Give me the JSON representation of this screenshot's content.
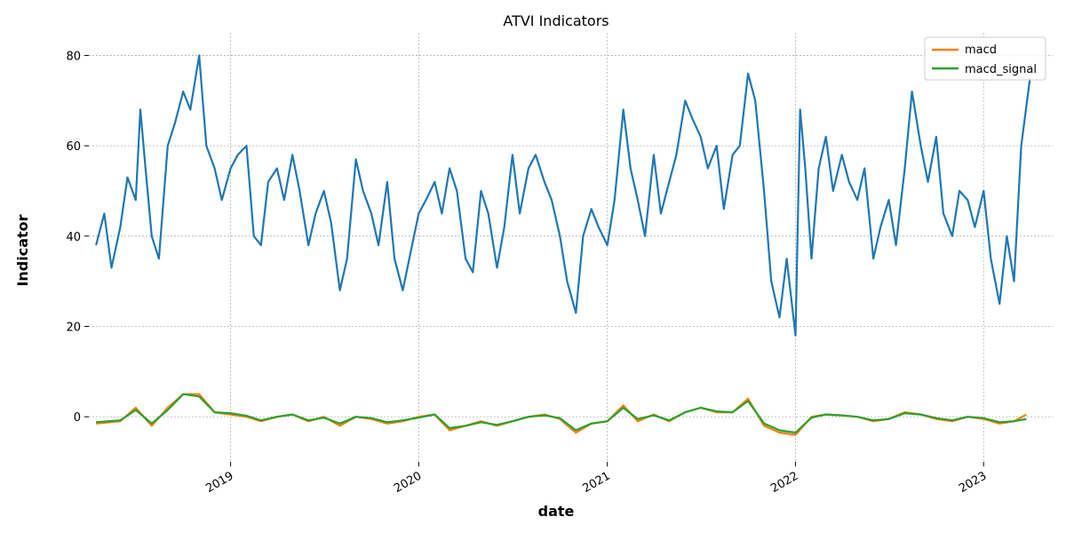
{
  "chart_data": {
    "type": "line",
    "title": "ATVI Indicators",
    "xlabel": "date",
    "ylabel": "Indicator",
    "xlim": [
      "2018-04-01",
      "2023-05-15"
    ],
    "ylim": [
      -10,
      85
    ],
    "yticks": [
      0,
      20,
      40,
      60,
      80
    ],
    "xticks": [
      {
        "date": "2019-01-01",
        "label": "2019"
      },
      {
        "date": "2020-01-01",
        "label": "2020"
      },
      {
        "date": "2021-01-01",
        "label": "2021"
      },
      {
        "date": "2022-01-01",
        "label": "2022"
      },
      {
        "date": "2023-01-01",
        "label": "2023"
      }
    ],
    "grid": true,
    "legend_position": "top-right",
    "legend": [
      "macd",
      "macd_signal"
    ],
    "series": [
      {
        "color": "#1f77b4",
        "points": [
          [
            "2018-04-15",
            38
          ],
          [
            "2018-05-01",
            45
          ],
          [
            "2018-05-15",
            33
          ],
          [
            "2018-06-01",
            42
          ],
          [
            "2018-06-15",
            53
          ],
          [
            "2018-07-01",
            48
          ],
          [
            "2018-07-10",
            68
          ],
          [
            "2018-07-20",
            55
          ],
          [
            "2018-08-01",
            40
          ],
          [
            "2018-08-15",
            35
          ],
          [
            "2018-09-01",
            60
          ],
          [
            "2018-09-15",
            65
          ],
          [
            "2018-10-01",
            72
          ],
          [
            "2018-10-15",
            68
          ],
          [
            "2018-11-01",
            80
          ],
          [
            "2018-11-15",
            60
          ],
          [
            "2018-12-01",
            55
          ],
          [
            "2018-12-15",
            48
          ],
          [
            "2019-01-01",
            55
          ],
          [
            "2019-01-15",
            58
          ],
          [
            "2019-02-01",
            60
          ],
          [
            "2019-02-15",
            40
          ],
          [
            "2019-03-01",
            38
          ],
          [
            "2019-03-15",
            52
          ],
          [
            "2019-04-01",
            55
          ],
          [
            "2019-04-15",
            48
          ],
          [
            "2019-05-01",
            58
          ],
          [
            "2019-05-15",
            50
          ],
          [
            "2019-06-01",
            38
          ],
          [
            "2019-06-15",
            45
          ],
          [
            "2019-07-01",
            50
          ],
          [
            "2019-07-15",
            43
          ],
          [
            "2019-08-01",
            28
          ],
          [
            "2019-08-15",
            35
          ],
          [
            "2019-09-01",
            57
          ],
          [
            "2019-09-15",
            50
          ],
          [
            "2019-10-01",
            45
          ],
          [
            "2019-10-15",
            38
          ],
          [
            "2019-11-01",
            52
          ],
          [
            "2019-11-15",
            35
          ],
          [
            "2019-12-01",
            28
          ],
          [
            "2020-01-01",
            45
          ],
          [
            "2020-01-15",
            48
          ],
          [
            "2020-02-01",
            52
          ],
          [
            "2020-02-15",
            45
          ],
          [
            "2020-03-01",
            55
          ],
          [
            "2020-03-15",
            50
          ],
          [
            "2020-04-01",
            35
          ],
          [
            "2020-04-15",
            32
          ],
          [
            "2020-05-01",
            50
          ],
          [
            "2020-05-15",
            45
          ],
          [
            "2020-06-01",
            33
          ],
          [
            "2020-06-15",
            42
          ],
          [
            "2020-07-01",
            58
          ],
          [
            "2020-07-15",
            45
          ],
          [
            "2020-08-01",
            55
          ],
          [
            "2020-08-15",
            58
          ],
          [
            "2020-09-01",
            52
          ],
          [
            "2020-09-15",
            48
          ],
          [
            "2020-10-01",
            40
          ],
          [
            "2020-10-15",
            30
          ],
          [
            "2020-11-01",
            23
          ],
          [
            "2020-11-15",
            40
          ],
          [
            "2020-12-01",
            46
          ],
          [
            "2020-12-15",
            42
          ],
          [
            "2021-01-01",
            38
          ],
          [
            "2021-01-15",
            48
          ],
          [
            "2021-02-01",
            68
          ],
          [
            "2021-02-15",
            55
          ],
          [
            "2021-03-01",
            48
          ],
          [
            "2021-03-15",
            40
          ],
          [
            "2021-04-01",
            58
          ],
          [
            "2021-04-15",
            45
          ],
          [
            "2021-05-01",
            52
          ],
          [
            "2021-05-15",
            58
          ],
          [
            "2021-06-01",
            70
          ],
          [
            "2021-06-15",
            66
          ],
          [
            "2021-07-01",
            62
          ],
          [
            "2021-07-15",
            55
          ],
          [
            "2021-08-01",
            60
          ],
          [
            "2021-08-15",
            46
          ],
          [
            "2021-09-01",
            58
          ],
          [
            "2021-09-15",
            60
          ],
          [
            "2021-10-01",
            76
          ],
          [
            "2021-10-15",
            70
          ],
          [
            "2021-11-01",
            50
          ],
          [
            "2021-11-15",
            30
          ],
          [
            "2021-12-01",
            22
          ],
          [
            "2021-12-15",
            35
          ],
          [
            "2022-01-01",
            18
          ],
          [
            "2022-01-10",
            68
          ],
          [
            "2022-01-20",
            55
          ],
          [
            "2022-02-01",
            35
          ],
          [
            "2022-02-15",
            55
          ],
          [
            "2022-03-01",
            62
          ],
          [
            "2022-03-15",
            50
          ],
          [
            "2022-04-01",
            58
          ],
          [
            "2022-04-15",
            52
          ],
          [
            "2022-05-01",
            48
          ],
          [
            "2022-05-15",
            55
          ],
          [
            "2022-06-01",
            35
          ],
          [
            "2022-06-15",
            42
          ],
          [
            "2022-07-01",
            48
          ],
          [
            "2022-07-15",
            38
          ],
          [
            "2022-08-01",
            55
          ],
          [
            "2022-08-15",
            72
          ],
          [
            "2022-09-01",
            60
          ],
          [
            "2022-09-15",
            52
          ],
          [
            "2022-10-01",
            62
          ],
          [
            "2022-10-15",
            45
          ],
          [
            "2022-11-01",
            40
          ],
          [
            "2022-11-15",
            50
          ],
          [
            "2022-12-01",
            48
          ],
          [
            "2022-12-15",
            42
          ],
          [
            "2023-01-01",
            50
          ],
          [
            "2023-01-15",
            35
          ],
          [
            "2023-02-01",
            25
          ],
          [
            "2023-02-15",
            40
          ],
          [
            "2023-03-01",
            30
          ],
          [
            "2023-03-15",
            60
          ],
          [
            "2023-04-01",
            75
          ]
        ]
      },
      {
        "name": "macd",
        "color": "#ff7f0e",
        "points": [
          [
            "2018-04-15",
            -1.5
          ],
          [
            "2018-06-01",
            -1
          ],
          [
            "2018-07-01",
            2
          ],
          [
            "2018-08-01",
            -2
          ],
          [
            "2018-09-01",
            2
          ],
          [
            "2018-10-01",
            5
          ],
          [
            "2018-11-01",
            5
          ],
          [
            "2018-12-01",
            1
          ],
          [
            "2019-01-01",
            0.5
          ],
          [
            "2019-02-01",
            0
          ],
          [
            "2019-03-01",
            -1
          ],
          [
            "2019-04-01",
            0
          ],
          [
            "2019-05-01",
            0.5
          ],
          [
            "2019-06-01",
            -1
          ],
          [
            "2019-07-01",
            0
          ],
          [
            "2019-08-01",
            -2
          ],
          [
            "2019-09-01",
            0
          ],
          [
            "2019-10-01",
            -0.5
          ],
          [
            "2019-11-01",
            -1.5
          ],
          [
            "2019-12-01",
            -1
          ],
          [
            "2020-01-01",
            0
          ],
          [
            "2020-02-01",
            0.5
          ],
          [
            "2020-03-01",
            -3
          ],
          [
            "2020-04-01",
            -2
          ],
          [
            "2020-05-01",
            -1
          ],
          [
            "2020-06-01",
            -2
          ],
          [
            "2020-07-01",
            -1
          ],
          [
            "2020-08-01",
            0
          ],
          [
            "2020-09-01",
            0.5
          ],
          [
            "2020-10-01",
            -0.5
          ],
          [
            "2020-11-01",
            -3.5
          ],
          [
            "2020-12-01",
            -1.5
          ],
          [
            "2021-01-01",
            -1
          ],
          [
            "2021-02-01",
            2.5
          ],
          [
            "2021-03-01",
            -1
          ],
          [
            "2021-04-01",
            0.5
          ],
          [
            "2021-05-01",
            -1
          ],
          [
            "2021-06-01",
            1
          ],
          [
            "2021-07-01",
            2
          ],
          [
            "2021-08-01",
            1
          ],
          [
            "2021-09-01",
            1
          ],
          [
            "2021-10-01",
            4
          ],
          [
            "2021-11-01",
            -2
          ],
          [
            "2021-12-01",
            -3.5
          ],
          [
            "2022-01-01",
            -4
          ],
          [
            "2022-02-01",
            0
          ],
          [
            "2022-03-01",
            0.5
          ],
          [
            "2022-04-01",
            0.3
          ],
          [
            "2022-05-01",
            0
          ],
          [
            "2022-06-01",
            -1
          ],
          [
            "2022-07-01",
            -0.5
          ],
          [
            "2022-08-01",
            1
          ],
          [
            "2022-09-01",
            0.5
          ],
          [
            "2022-10-01",
            -0.5
          ],
          [
            "2022-11-01",
            -1
          ],
          [
            "2022-12-01",
            0
          ],
          [
            "2023-01-01",
            -0.5
          ],
          [
            "2023-02-01",
            -1.5
          ],
          [
            "2023-03-01",
            -1
          ],
          [
            "2023-03-25",
            0.5
          ]
        ]
      },
      {
        "name": "macd_signal",
        "color": "#2ca02c",
        "points": [
          [
            "2018-04-15",
            -1.2
          ],
          [
            "2018-06-01",
            -0.8
          ],
          [
            "2018-07-01",
            1.5
          ],
          [
            "2018-08-01",
            -1.5
          ],
          [
            "2018-09-01",
            1.5
          ],
          [
            "2018-10-01",
            5
          ],
          [
            "2018-11-01",
            4.5
          ],
          [
            "2018-12-01",
            1
          ],
          [
            "2019-01-01",
            0.8
          ],
          [
            "2019-02-01",
            0.2
          ],
          [
            "2019-03-01",
            -0.8
          ],
          [
            "2019-04-01",
            0
          ],
          [
            "2019-05-01",
            0.5
          ],
          [
            "2019-06-01",
            -0.8
          ],
          [
            "2019-07-01",
            -0.2
          ],
          [
            "2019-08-01",
            -1.5
          ],
          [
            "2019-09-01",
            0
          ],
          [
            "2019-10-01",
            -0.3
          ],
          [
            "2019-11-01",
            -1.2
          ],
          [
            "2019-12-01",
            -0.8
          ],
          [
            "2020-01-01",
            -0.2
          ],
          [
            "2020-02-01",
            0.5
          ],
          [
            "2020-03-01",
            -2.5
          ],
          [
            "2020-04-01",
            -2
          ],
          [
            "2020-05-01",
            -1.2
          ],
          [
            "2020-06-01",
            -1.8
          ],
          [
            "2020-07-01",
            -1
          ],
          [
            "2020-08-01",
            0
          ],
          [
            "2020-09-01",
            0.3
          ],
          [
            "2020-10-01",
            -0.3
          ],
          [
            "2020-11-01",
            -3
          ],
          [
            "2020-12-01",
            -1.5
          ],
          [
            "2021-01-01",
            -1
          ],
          [
            "2021-02-01",
            2
          ],
          [
            "2021-03-01",
            -0.5
          ],
          [
            "2021-04-01",
            0.3
          ],
          [
            "2021-05-01",
            -0.8
          ],
          [
            "2021-06-01",
            1
          ],
          [
            "2021-07-01",
            2
          ],
          [
            "2021-08-01",
            1.2
          ],
          [
            "2021-09-01",
            1
          ],
          [
            "2021-10-01",
            3.5
          ],
          [
            "2021-11-01",
            -1.5
          ],
          [
            "2021-12-01",
            -3
          ],
          [
            "2022-01-01",
            -3.5
          ],
          [
            "2022-02-01",
            -0.2
          ],
          [
            "2022-03-01",
            0.5
          ],
          [
            "2022-04-01",
            0.3
          ],
          [
            "2022-05-01",
            0
          ],
          [
            "2022-06-01",
            -0.8
          ],
          [
            "2022-07-01",
            -0.5
          ],
          [
            "2022-08-01",
            0.8
          ],
          [
            "2022-09-01",
            0.5
          ],
          [
            "2022-10-01",
            -0.3
          ],
          [
            "2022-11-01",
            -0.8
          ],
          [
            "2022-12-01",
            0
          ],
          [
            "2023-01-01",
            -0.3
          ],
          [
            "2023-02-01",
            -1.2
          ],
          [
            "2023-03-01",
            -1
          ],
          [
            "2023-03-25",
            -0.5
          ]
        ]
      }
    ]
  }
}
